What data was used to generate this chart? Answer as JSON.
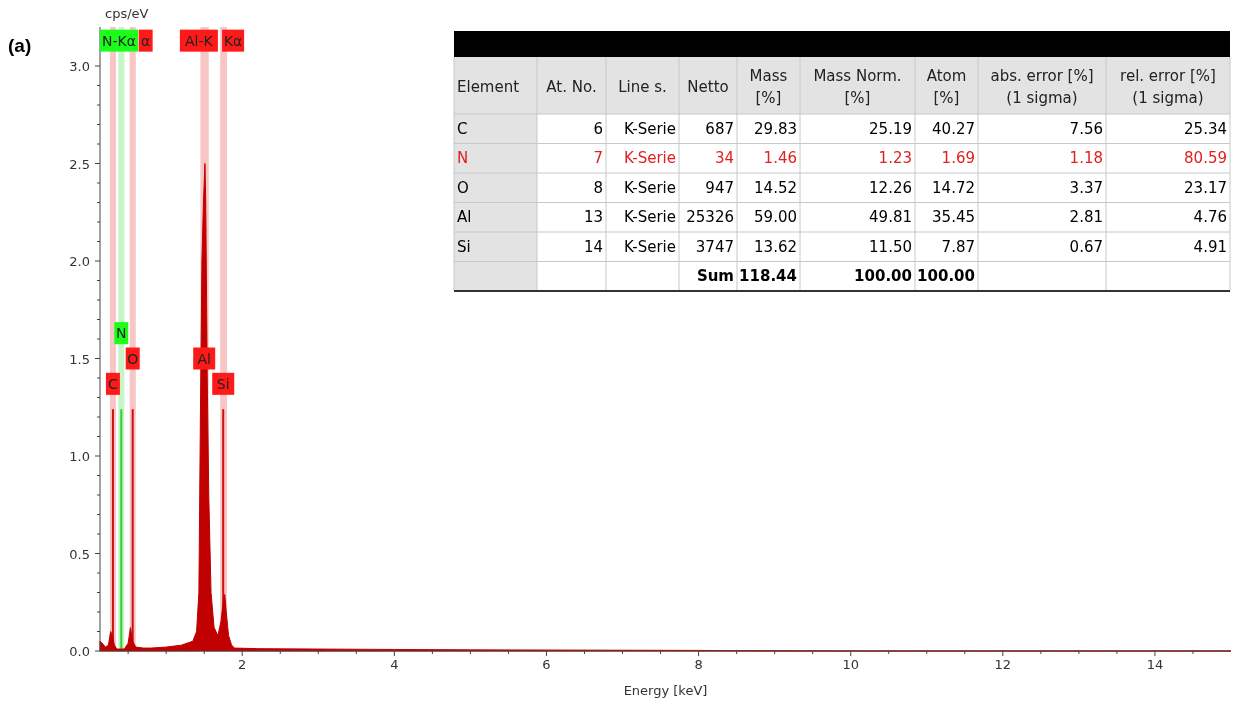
{
  "chart_data": [
    {
      "type": "area",
      "xlabel": "Energy [keV]",
      "ylabel": "cps/eV",
      "annotations": [
        "(a)",
        {
          "text": "N-Kα",
          "x": 0.38,
          "y": 3.13
        },
        {
          "text": "α",
          "x": 0.73,
          "y": 3.13
        },
        {
          "text": "Al-K",
          "x": 1.43,
          "y": 3.13
        },
        {
          "text": "Kα",
          "x": 1.88,
          "y": 3.13
        },
        {
          "text": "N",
          "x": 0.41,
          "y": 1.63
        },
        {
          "text": "O",
          "x": 0.56,
          "y": 1.5
        },
        {
          "text": "C",
          "x": 0.3,
          "y": 1.37
        },
        {
          "text": "Al",
          "x": 1.5,
          "y": 1.5
        },
        {
          "text": "Si",
          "x": 1.75,
          "y": 1.37
        }
      ],
      "xlim": [
        0.13,
        15
      ],
      "ylim": [
        0,
        3.2
      ],
      "xticks": [
        {
          "value": 0.5,
          "label": null
        },
        {
          "value": 1,
          "label": null
        },
        {
          "value": 1.5,
          "label": null
        },
        2,
        {
          "value": 2.5,
          "label": null
        },
        {
          "value": 3,
          "label": null
        },
        {
          "value": 3.5,
          "label": null
        },
        4,
        {
          "value": 4.5,
          "label": null
        },
        {
          "value": 5,
          "label": null
        },
        {
          "value": 5.5,
          "label": null
        },
        6,
        {
          "value": 6.5,
          "label": null
        },
        {
          "value": 7,
          "label": null
        },
        {
          "value": 7.5,
          "label": null
        },
        8,
        {
          "value": 8.5,
          "label": null
        },
        {
          "value": 9,
          "label": null
        },
        {
          "value": 9.5,
          "label": null
        },
        10,
        {
          "value": 10.5,
          "label": null
        },
        {
          "value": 11,
          "label": null
        },
        {
          "value": 11.5,
          "label": null
        },
        12,
        {
          "value": 12.5,
          "label": null
        },
        {
          "value": 13,
          "label": null
        },
        {
          "value": 13.5,
          "label": null
        },
        14,
        {
          "value": 14.5,
          "label": null
        }
      ],
      "yticks": [
        {
          "value": 0,
          "label": "0.0"
        },
        {
          "value": 0.1,
          "label": null
        },
        {
          "value": 0.2,
          "label": null
        },
        {
          "value": 0.3,
          "label": null
        },
        {
          "value": 0.4,
          "label": null
        },
        {
          "value": 0.5,
          "label": "0.5"
        },
        {
          "value": 0.6,
          "label": null
        },
        {
          "value": 0.7,
          "label": null
        },
        {
          "value": 0.8,
          "label": null
        },
        {
          "value": 0.9,
          "label": null
        },
        {
          "value": 1,
          "label": "1.0"
        },
        {
          "value": 1.1,
          "label": null
        },
        {
          "value": 1.2,
          "label": null
        },
        {
          "value": 1.3,
          "label": null
        },
        {
          "value": 1.4,
          "label": null
        },
        {
          "value": 1.5,
          "label": "1.5"
        },
        {
          "value": 1.6,
          "label": null
        },
        {
          "value": 1.7,
          "label": null
        },
        {
          "value": 1.8,
          "label": null
        },
        {
          "value": 1.9,
          "label": null
        },
        {
          "value": 2,
          "label": "2.0"
        },
        {
          "value": 2.1,
          "label": null
        },
        {
          "value": 2.2,
          "label": null
        },
        {
          "value": 2.3,
          "label": null
        },
        {
          "value": 2.4,
          "label": null
        },
        {
          "value": 2.5,
          "label": "2.5"
        },
        {
          "value": 2.6,
          "label": null
        },
        {
          "value": 2.7,
          "label": null
        },
        {
          "value": 2.8,
          "label": null
        },
        {
          "value": 2.9,
          "label": null
        },
        {
          "value": 3,
          "label": "3.0"
        }
      ],
      "bands": [
        {
          "axis": "x",
          "from": 0.26,
          "to": 0.34,
          "color": "#f9c6c6"
        },
        {
          "axis": "x",
          "from": 0.37,
          "to": 0.45,
          "color": "#c8f5c8"
        },
        {
          "axis": "x",
          "from": 0.52,
          "to": 0.6,
          "color": "#f9c6c6"
        },
        {
          "axis": "x",
          "from": 1.45,
          "to": 1.56,
          "color": "#f9c6c6"
        },
        {
          "axis": "x",
          "from": 1.71,
          "to": 1.8,
          "color": "#f9c6c6"
        }
      ],
      "series": [
        {
          "type": "bar",
          "x": [
            0.3,
            0.41,
            0.56,
            1.75
          ],
          "values": [
            1.24,
            1.24,
            1.24,
            1.24
          ],
          "colors": [
            "#d01010",
            "#30d030",
            "#d01010",
            "#d01010"
          ]
        },
        {
          "type": "area",
          "color": "#c00000",
          "x": [
            0.13,
            0.16,
            0.2,
            0.24,
            0.27,
            0.29,
            0.32,
            0.35,
            0.4,
            0.45,
            0.5,
            0.53,
            0.56,
            0.6,
            0.7,
            0.8,
            1.0,
            1.2,
            1.35,
            1.4,
            1.43,
            1.45,
            1.47,
            1.49,
            1.51,
            1.52,
            1.54,
            1.56,
            1.59,
            1.63,
            1.68,
            1.72,
            1.75,
            1.77,
            1.79,
            1.82,
            1.86,
            1.9,
            2.2,
            3,
            4,
            5,
            6,
            7,
            8,
            9,
            10,
            15
          ],
          "values": [
            0.05,
            0.04,
            0.02,
            0.03,
            0.1,
            0.08,
            0.03,
            0.01,
            0.01,
            0.01,
            0.04,
            0.12,
            0.05,
            0.02,
            0.015,
            0.015,
            0.02,
            0.03,
            0.05,
            0.1,
            0.3,
            1.2,
            2.0,
            2.3,
            2.5,
            2.3,
            1.4,
            0.8,
            0.3,
            0.12,
            0.08,
            0.15,
            0.25,
            0.29,
            0.2,
            0.08,
            0.03,
            0.015,
            0.012,
            0.01,
            0.008,
            0.006,
            0.005,
            0.004,
            0.003,
            0.001,
            0,
            0
          ]
        }
      ],
      "grid": false
    },
    {
      "type": "other",
      "categories": [
        "Element",
        "At. No.",
        "Line s.",
        "Netto",
        "Mass\n[%]",
        "Mass Norm.\n[%]",
        "Atom\n[%]",
        "abs. error [%]\n(1 sigma)",
        "rel. error [%]\n(1 sigma)"
      ],
      "cell_labels": [
        [
          "C",
          "6",
          "K-Serie",
          "687",
          "29.83",
          "25.19",
          "40.27",
          "7.56",
          "25.34"
        ],
        [
          "N",
          "7",
          "K-Serie",
          "34",
          "1.46",
          "1.23",
          "1.69",
          "1.18",
          "80.59"
        ],
        [
          "O",
          "8",
          "K-Serie",
          "947",
          "14.52",
          "12.26",
          "14.72",
          "3.37",
          "23.17"
        ],
        [
          "Al",
          "13",
          "K-Serie",
          "25326",
          "59.00",
          "49.81",
          "35.45",
          "2.81",
          "4.76"
        ],
        [
          "Si",
          "14",
          "K-Serie",
          "3747",
          "13.62",
          "11.50",
          "7.87",
          "0.67",
          "4.91"
        ],
        [
          null,
          null,
          null,
          "Sum",
          "118.44",
          "100.00",
          "100.00",
          null,
          null
        ]
      ],
      "colors": [
        "#000000",
        "#e02020",
        "#000000",
        "#000000",
        "#000000",
        "#000000"
      ]
    }
  ]
}
